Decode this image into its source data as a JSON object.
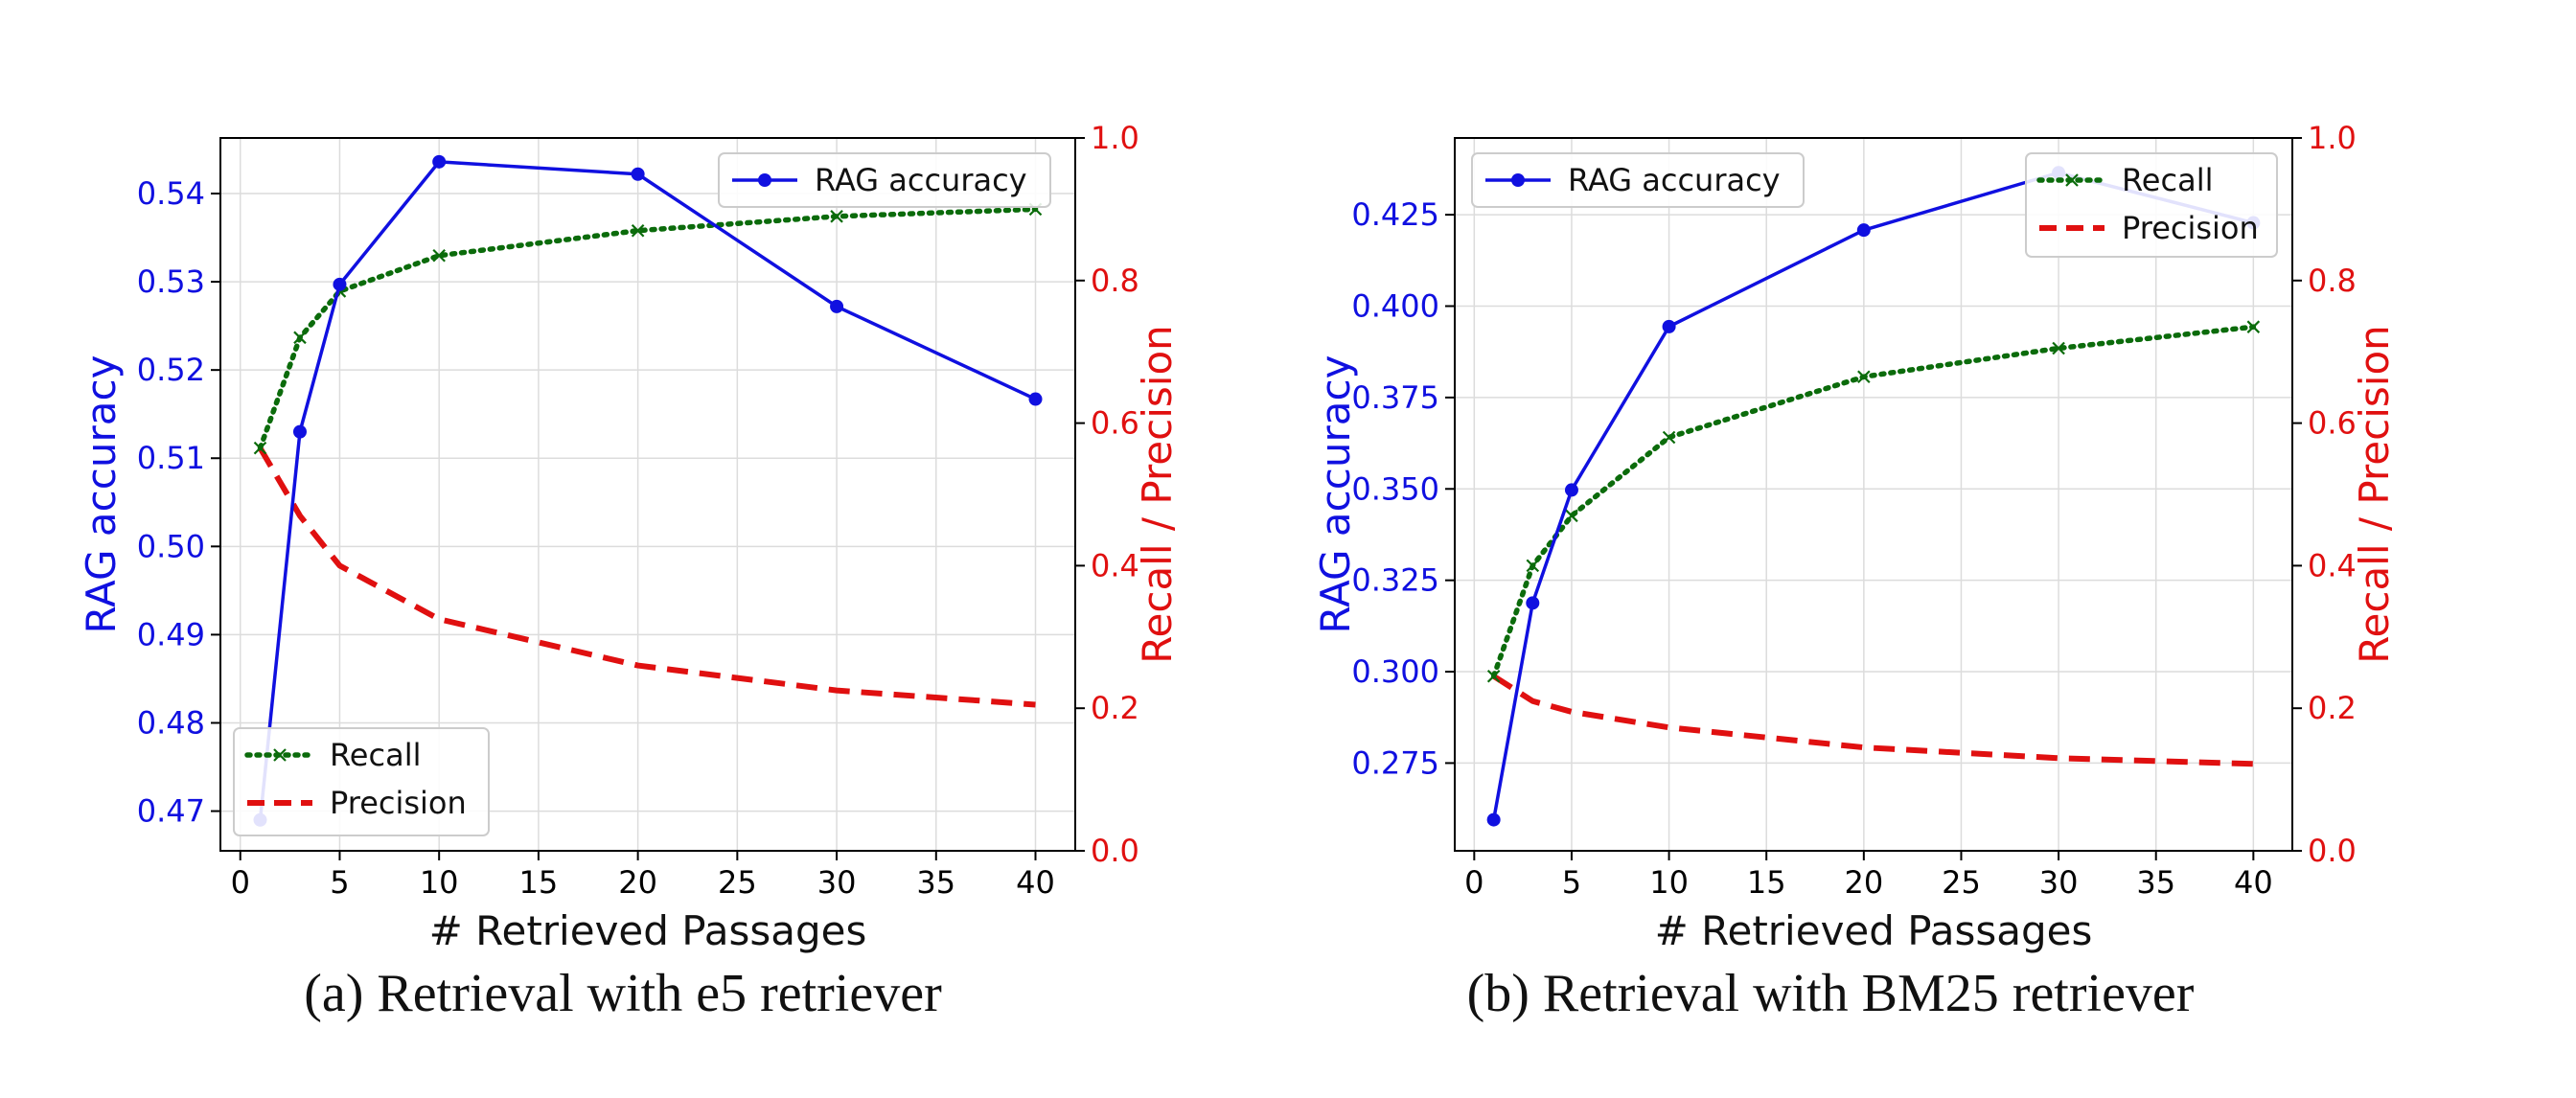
{
  "chart_data": [
    {
      "type": "line",
      "label": "(a)",
      "caption": "Retrieval with e5 retriever",
      "xlabel": "# Retrieved Passages",
      "ylabel_left": "RAG accuracy",
      "ylabel_right": "Recall / Precision",
      "xlim": [
        -1,
        42
      ],
      "ylim_left": [
        0.4655,
        0.5463
      ],
      "ylim_right": [
        0,
        1
      ],
      "xticks": [
        0,
        5,
        10,
        15,
        20,
        25,
        30,
        35,
        40
      ],
      "yticks_left": [
        0.47,
        0.48,
        0.49,
        0.5,
        0.51,
        0.52,
        0.53,
        0.54
      ],
      "yticks_right": [
        0.0,
        0.2,
        0.4,
        0.6,
        0.8,
        1.0
      ],
      "x": [
        1,
        3,
        5,
        10,
        20,
        30,
        40
      ],
      "series": [
        {
          "name": "RAG accuracy",
          "axis": "left",
          "color": "#1010e0",
          "style": "solid-dot",
          "values": [
            0.469,
            0.513,
            0.5297,
            0.5436,
            0.5422,
            0.5272,
            0.5167
          ]
        },
        {
          "name": "Recall",
          "axis": "right",
          "color": "#0b6b0b",
          "style": "dotted-x",
          "values": [
            0.565,
            0.72,
            0.785,
            0.835,
            0.87,
            0.89,
            0.9
          ]
        },
        {
          "name": "Precision",
          "axis": "right",
          "color": "#e01010",
          "style": "dashed",
          "values": [
            0.565,
            0.47,
            0.4,
            0.325,
            0.26,
            0.225,
            0.205
          ]
        }
      ],
      "legends": [
        {
          "position": "upper-right",
          "entries": [
            "RAG accuracy"
          ]
        },
        {
          "position": "lower-left",
          "entries": [
            "Recall",
            "Precision"
          ]
        }
      ]
    },
    {
      "type": "line",
      "label": "(b)",
      "caption": "Retrieval with BM25 retriever",
      "xlabel": "# Retrieved Passages",
      "ylabel_left": "RAG accuracy",
      "ylabel_right": "Recall / Precision",
      "xlim": [
        -1,
        42
      ],
      "ylim_left": [
        0.251,
        0.446
      ],
      "ylim_right": [
        0,
        1
      ],
      "xticks": [
        0,
        5,
        10,
        15,
        20,
        25,
        30,
        35,
        40
      ],
      "yticks_left": [
        0.275,
        0.3,
        0.325,
        0.35,
        0.375,
        0.4,
        0.425
      ],
      "yticks_right": [
        0.0,
        0.2,
        0.4,
        0.6,
        0.8,
        1.0
      ],
      "x": [
        1,
        3,
        5,
        10,
        20,
        30,
        40
      ],
      "series": [
        {
          "name": "RAG accuracy",
          "axis": "left",
          "color": "#1010e0",
          "style": "solid-dot",
          "values": [
            0.2595,
            0.3188,
            0.3497,
            0.3944,
            0.4208,
            0.4365,
            0.4228
          ]
        },
        {
          "name": "Recall",
          "axis": "right",
          "color": "#0b6b0b",
          "style": "dotted-x",
          "values": [
            0.245,
            0.4,
            0.47,
            0.58,
            0.665,
            0.705,
            0.735
          ]
        },
        {
          "name": "Precision",
          "axis": "right",
          "color": "#e01010",
          "style": "dashed",
          "values": [
            0.245,
            0.21,
            0.195,
            0.173,
            0.145,
            0.13,
            0.122
          ]
        }
      ],
      "legends": [
        {
          "position": "upper-left",
          "entries": [
            "RAG accuracy"
          ]
        },
        {
          "position": "upper-right",
          "entries": [
            "Recall",
            "Precision"
          ]
        }
      ]
    }
  ]
}
